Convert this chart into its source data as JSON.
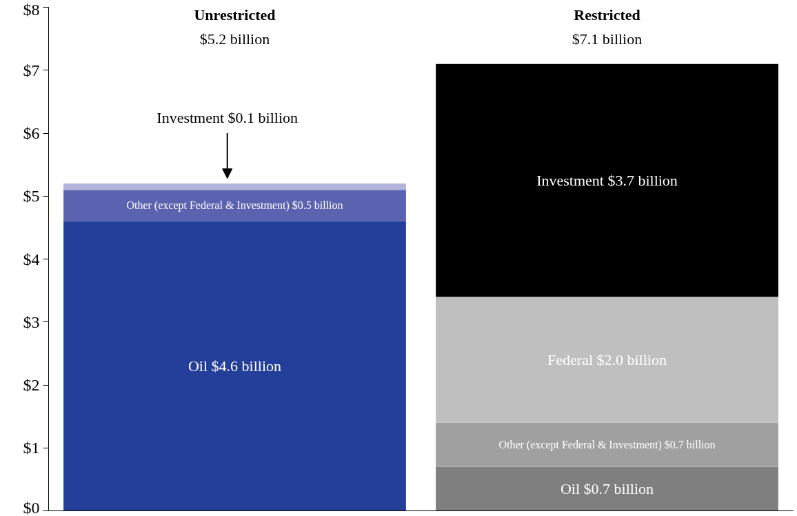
{
  "chart_data": {
    "type": "bar",
    "stacked": true,
    "categories": [
      "Unrestricted",
      "Restricted"
    ],
    "series": [
      {
        "colors": [
          "#233f99",
          "#7f7f7f"
        ],
        "values": [
          4.6,
          0.7
        ],
        "value_labels": [
          "Oil $4.6 billion",
          "Oil $0.7 billion"
        ]
      },
      {
        "colors": [
          "#5b63b0",
          "#a0a0a0"
        ],
        "values": [
          0.5,
          0.7
        ],
        "value_labels": [
          "Other (except Federal & Investment) $0.5 billion",
          "Other (except Federal & Investment) $0.7 billion"
        ]
      },
      {
        "colors": [
          "#bfbfbf",
          "#bfbfbf"
        ],
        "values": [
          null,
          2.0
        ],
        "value_labels": [
          null,
          "Federal $2.0 billion"
        ]
      },
      {
        "colors": [
          "#b3b3dd",
          "#000000"
        ],
        "values": [
          0.1,
          3.7
        ],
        "value_labels": [
          "Investment $0.1 billion",
          "Investment $3.7 billion"
        ]
      }
    ],
    "annotations": [
      "$5.2 billion",
      "$7.1 billion"
    ],
    "ylim": [
      0,
      8
    ],
    "yticks": [
      {
        "value": 0,
        "label": "$0"
      },
      {
        "value": 1,
        "label": "$1"
      },
      {
        "value": 2,
        "label": "$2"
      },
      {
        "value": 3,
        "label": "$3"
      },
      {
        "value": 4,
        "label": "$4"
      },
      {
        "value": 5,
        "label": "$5"
      },
      {
        "value": 6,
        "label": "$6"
      },
      {
        "value": 7,
        "label": "$7"
      },
      {
        "value": 8,
        "label": "$8"
      }
    ],
    "grid": false
  }
}
